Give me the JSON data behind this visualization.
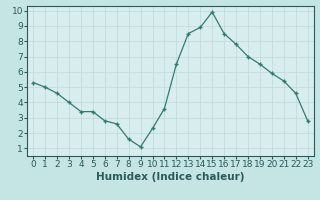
{
  "x": [
    0,
    1,
    2,
    3,
    4,
    5,
    6,
    7,
    8,
    9,
    10,
    11,
    12,
    13,
    14,
    15,
    16,
    17,
    18,
    19,
    20,
    21,
    22,
    23
  ],
  "y": [
    5.3,
    5.0,
    4.6,
    4.0,
    3.4,
    3.4,
    2.8,
    2.6,
    1.6,
    1.1,
    2.3,
    3.6,
    6.5,
    8.5,
    8.9,
    9.9,
    8.5,
    7.8,
    7.0,
    6.5,
    5.9,
    5.4,
    4.6,
    2.8
  ],
  "xlabel": "Humidex (Indice chaleur)",
  "xlim": [
    -0.5,
    23.5
  ],
  "ylim": [
    0.5,
    10.3
  ],
  "xticks": [
    0,
    1,
    2,
    3,
    4,
    5,
    6,
    7,
    8,
    9,
    10,
    11,
    12,
    13,
    14,
    15,
    16,
    17,
    18,
    19,
    20,
    21,
    22,
    23
  ],
  "yticks": [
    1,
    2,
    3,
    4,
    5,
    6,
    7,
    8,
    9,
    10
  ],
  "line_color": "#2e7d6e",
  "marker": "+",
  "bg_plot": "#d8eeee",
  "bg_fig": "#c5e5e5",
  "grid_color": "#c0d8d8",
  "tick_fontsize": 6.5,
  "xlabel_fontsize": 7.5
}
